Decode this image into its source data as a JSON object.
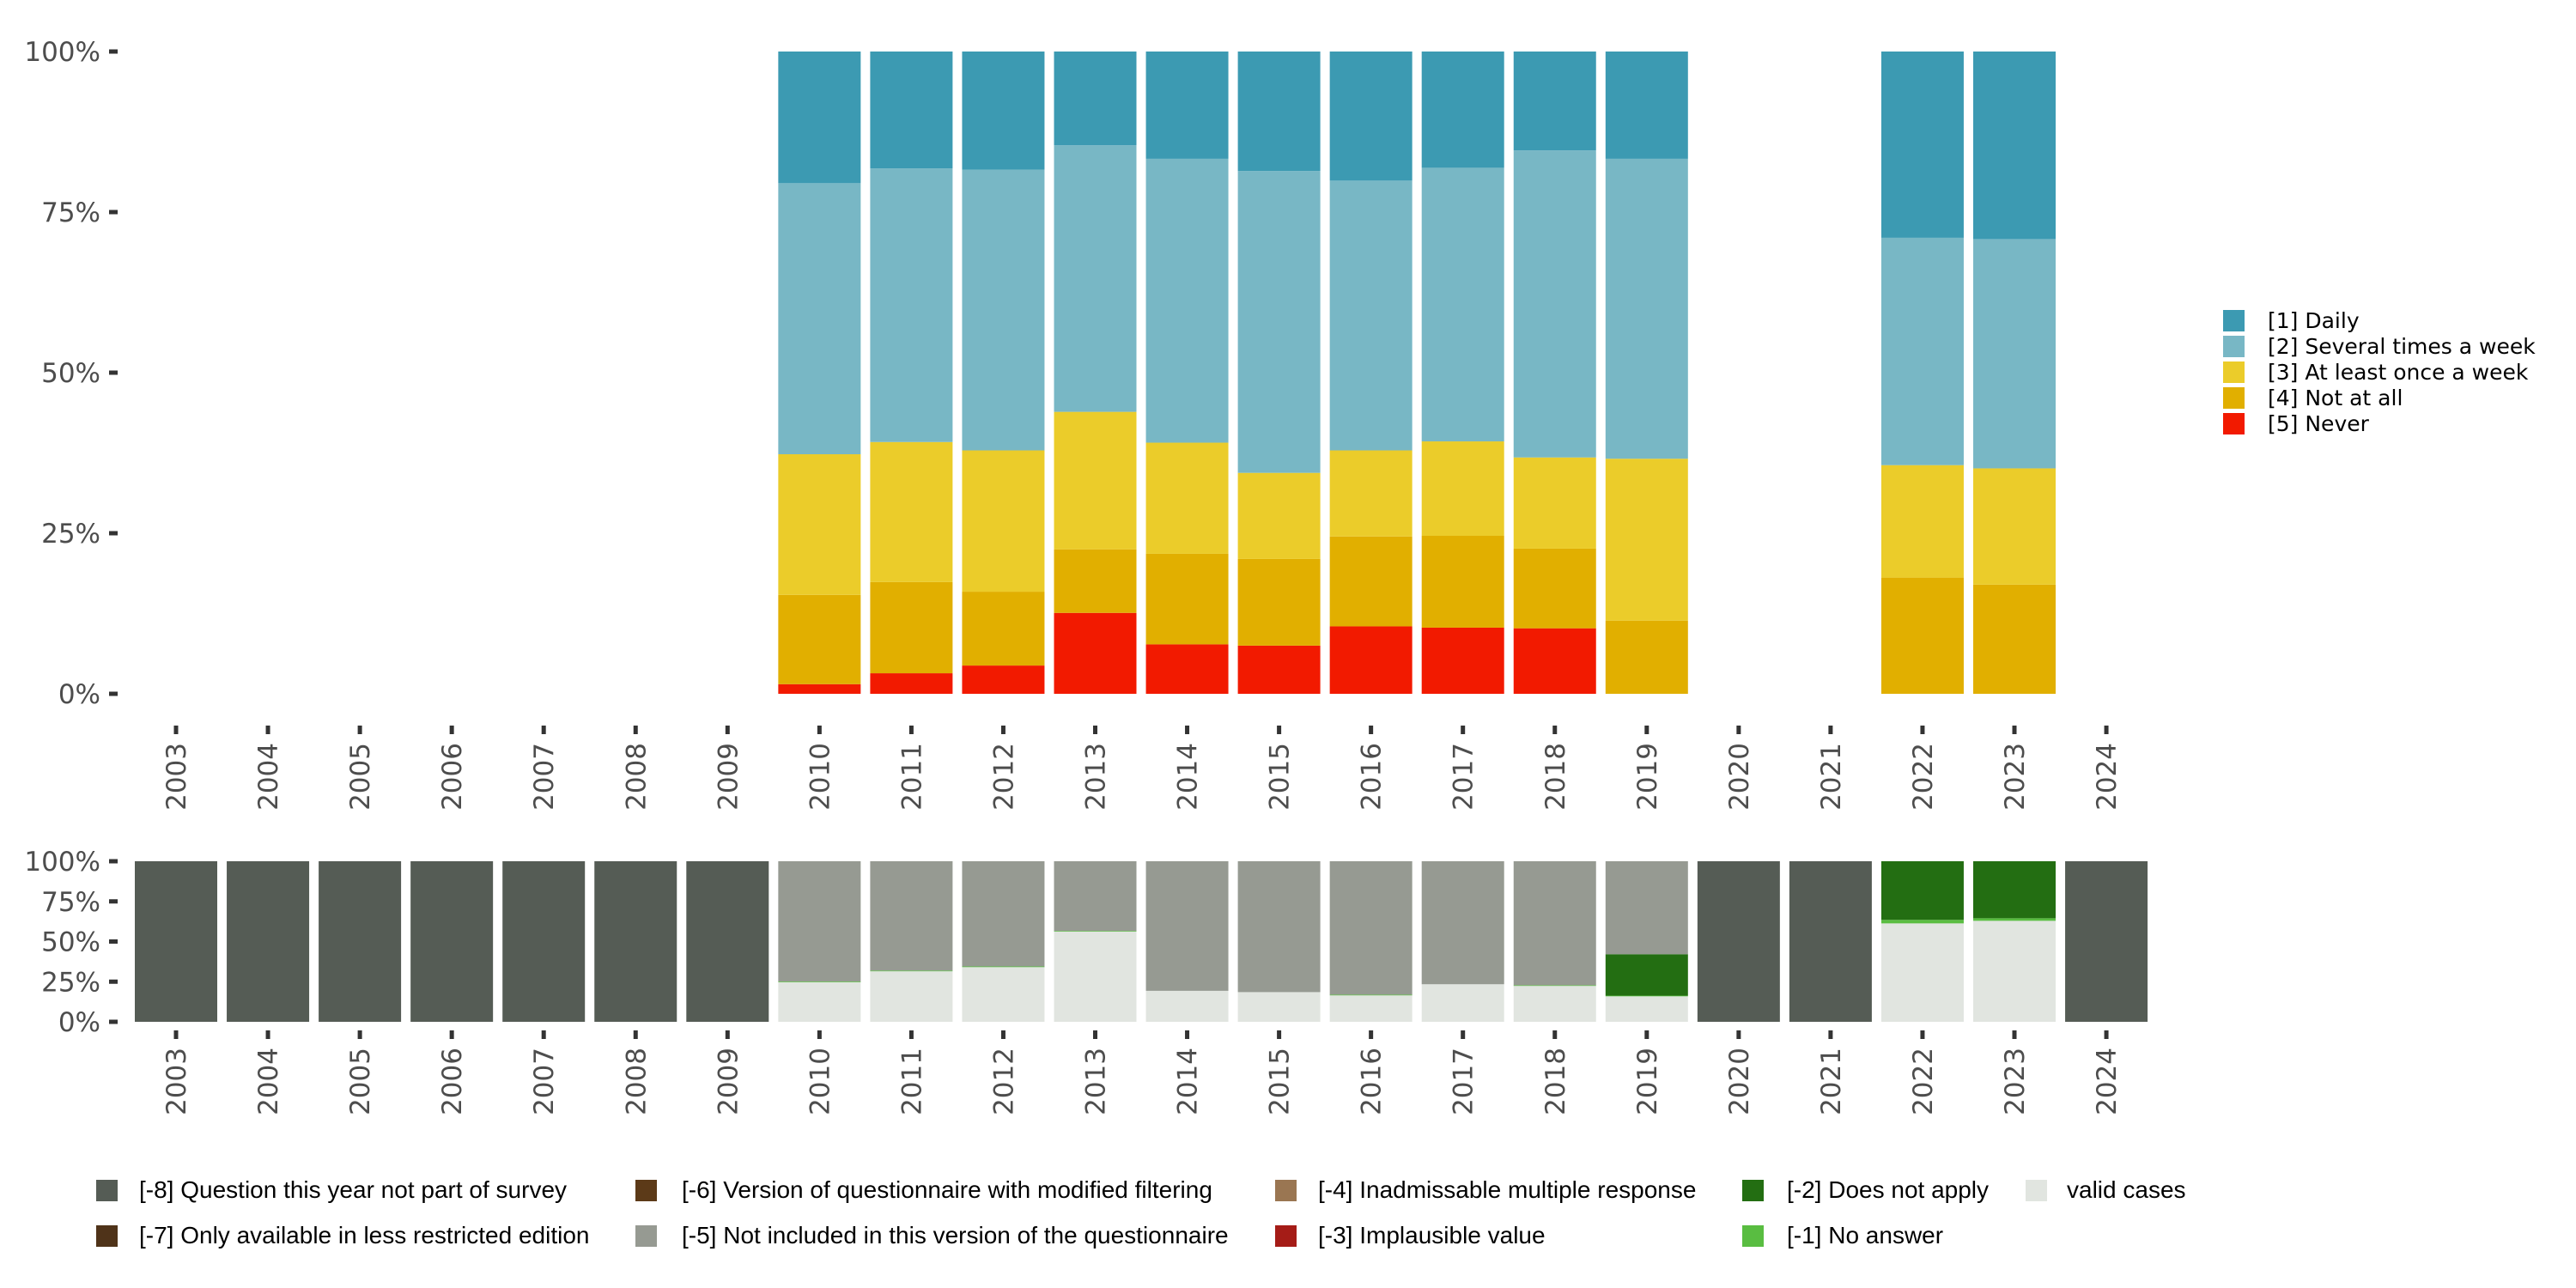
{
  "chart_data": [
    {
      "id": "response-distribution",
      "type": "bar",
      "stacked": true,
      "title": "",
      "xlabel": "",
      "ylabel": "",
      "ylim": [
        0,
        100
      ],
      "y_ticks": [
        "0%",
        "25%",
        "50%",
        "75%",
        "100%"
      ],
      "categories": [
        "2003",
        "2004",
        "2005",
        "2006",
        "2007",
        "2008",
        "2009",
        "2010",
        "2011",
        "2012",
        "2013",
        "2014",
        "2015",
        "2016",
        "2017",
        "2018",
        "2019",
        "2020",
        "2021",
        "2022",
        "2023",
        "2024"
      ],
      "legend_position": "right",
      "series": [
        {
          "name": "[5] Never",
          "color": "#f21a00",
          "values": [
            null,
            null,
            null,
            null,
            null,
            null,
            null,
            1.5,
            3.2,
            4.4,
            12.6,
            7.7,
            7.5,
            10.5,
            10.3,
            10.2,
            0,
            null,
            null,
            0,
            0,
            null
          ]
        },
        {
          "name": "[4] Not at all",
          "color": "#e1af00",
          "values": [
            null,
            null,
            null,
            null,
            null,
            null,
            null,
            13.9,
            14.2,
            11.5,
            9.9,
            14.1,
            13.5,
            14.0,
            14.3,
            12.4,
            11.4,
            null,
            null,
            18.1,
            17.0,
            null
          ]
        },
        {
          "name": "[3] At least once a week",
          "color": "#ebcc2a",
          "values": [
            null,
            null,
            null,
            null,
            null,
            null,
            null,
            21.9,
            21.8,
            22.0,
            21.4,
            17.3,
            13.4,
            13.4,
            14.7,
            14.2,
            25.2,
            null,
            null,
            17.5,
            18.1,
            null
          ]
        },
        {
          "name": "[2] Several times a week",
          "color": "#78b7c5",
          "values": [
            null,
            null,
            null,
            null,
            null,
            null,
            null,
            42.2,
            42.6,
            43.7,
            41.5,
            44.2,
            47.0,
            42.0,
            42.6,
            47.8,
            46.7,
            null,
            null,
            35.4,
            35.7,
            null
          ]
        },
        {
          "name": "[1] Daily",
          "color": "#3c9ab2",
          "values": [
            null,
            null,
            null,
            null,
            null,
            null,
            null,
            20.5,
            18.2,
            18.4,
            14.6,
            16.7,
            18.6,
            20.1,
            18.1,
            15.4,
            16.7,
            null,
            null,
            29.0,
            29.2,
            null
          ]
        }
      ],
      "legend": [
        {
          "label": "[1] Daily",
          "color": "#3c9ab2"
        },
        {
          "label": "[2] Several times a week",
          "color": "#78b7c5"
        },
        {
          "label": "[3] At least once a week",
          "color": "#ebcc2a"
        },
        {
          "label": "[4] Not at all",
          "color": "#e1af00"
        },
        {
          "label": "[5] Never",
          "color": "#f21a00"
        }
      ]
    },
    {
      "id": "missing-values",
      "type": "bar",
      "stacked": true,
      "title": "",
      "xlabel": "",
      "ylabel": "",
      "ylim": [
        0,
        100
      ],
      "y_ticks": [
        "0%",
        "25%",
        "50%",
        "75%",
        "100%"
      ],
      "categories": [
        "2003",
        "2004",
        "2005",
        "2006",
        "2007",
        "2008",
        "2009",
        "2010",
        "2011",
        "2012",
        "2013",
        "2014",
        "2015",
        "2016",
        "2017",
        "2018",
        "2019",
        "2020",
        "2021",
        "2022",
        "2023",
        "2024"
      ],
      "legend_position": "bottom",
      "series": [
        {
          "name": "valid cases",
          "color": "#e1e5e0",
          "values": [
            0,
            0,
            0,
            0,
            0,
            0,
            0,
            24.8,
            31.6,
            34.2,
            56.3,
            19.3,
            18.5,
            16.6,
            23.4,
            22.5,
            15.9,
            0,
            0,
            61.3,
            62.9,
            0
          ]
        },
        {
          "name": "[-1] No answer",
          "color": "#59bd41",
          "values": [
            0,
            0,
            0,
            0,
            0,
            0,
            0,
            0.3,
            0.3,
            0.3,
            0.3,
            0,
            0,
            0.3,
            0,
            0.3,
            0.4,
            0,
            0,
            2.2,
            1.6,
            0
          ]
        },
        {
          "name": "[-2] Does not apply",
          "color": "#236e12",
          "values": [
            0,
            0,
            0,
            0,
            0,
            0,
            0,
            0,
            0,
            0,
            0,
            0,
            0,
            0,
            0,
            0,
            25.8,
            0,
            0,
            36.5,
            35.5,
            0
          ]
        },
        {
          "name": "[-3] Implausible value",
          "color": "#a51c17",
          "values": [
            0,
            0,
            0,
            0,
            0,
            0,
            0,
            0,
            0,
            0,
            0,
            0,
            0,
            0,
            0,
            0,
            0,
            0,
            0,
            0,
            0,
            0
          ]
        },
        {
          "name": "[-4] Inadmissable multiple response",
          "color": "#9a7652",
          "values": [
            0,
            0,
            0,
            0,
            0,
            0,
            0,
            0,
            0,
            0,
            0,
            0,
            0,
            0,
            0,
            0,
            0,
            0,
            0,
            0,
            0,
            0
          ]
        },
        {
          "name": "[-5] Not included in this version of the questionnaire",
          "color": "#969a92",
          "values": [
            0,
            0,
            0,
            0,
            0,
            0,
            0,
            74.9,
            68.1,
            65.5,
            43.4,
            80.7,
            81.5,
            83.1,
            76.6,
            77.2,
            57.9,
            0,
            0,
            0,
            0,
            0
          ]
        },
        {
          "name": "[-6] Version of questionnaire with modified filtering",
          "color": "#5c3a18",
          "values": [
            0,
            0,
            0,
            0,
            0,
            0,
            0,
            0,
            0,
            0,
            0,
            0,
            0,
            0,
            0,
            0,
            0,
            0,
            0,
            0,
            0,
            0
          ]
        },
        {
          "name": "[-7] Only available in less restricted edition",
          "color": "#4f3319",
          "values": [
            0,
            0,
            0,
            0,
            0,
            0,
            0,
            0,
            0,
            0,
            0,
            0,
            0,
            0,
            0,
            0,
            0,
            0,
            0,
            0,
            0,
            0
          ]
        },
        {
          "name": "[-8] Question this year not part of survey",
          "color": "#555c55",
          "values": [
            100,
            100,
            100,
            100,
            100,
            100,
            100,
            0,
            0,
            0,
            0,
            0,
            0,
            0,
            0,
            0,
            0,
            100,
            100,
            0,
            0,
            100
          ]
        }
      ],
      "legend": [
        {
          "label": "[-8] Question this year not part of survey",
          "color": "#555c55"
        },
        {
          "label": "[-7] Only available in less restricted edition",
          "color": "#4f3319"
        },
        {
          "label": "[-6] Version of questionnaire with modified filtering",
          "color": "#5c3a18"
        },
        {
          "label": "[-5] Not included in this version of the questionnaire",
          "color": "#969a92"
        },
        {
          "label": "[-4] Inadmissable multiple response",
          "color": "#9a7652"
        },
        {
          "label": "[-3] Implausible value",
          "color": "#a51c17"
        },
        {
          "label": "[-2] Does not apply",
          "color": "#236e12"
        },
        {
          "label": "[-1] No answer",
          "color": "#59bd41"
        },
        {
          "label": "valid cases",
          "color": "#e1e5e0"
        }
      ]
    }
  ]
}
